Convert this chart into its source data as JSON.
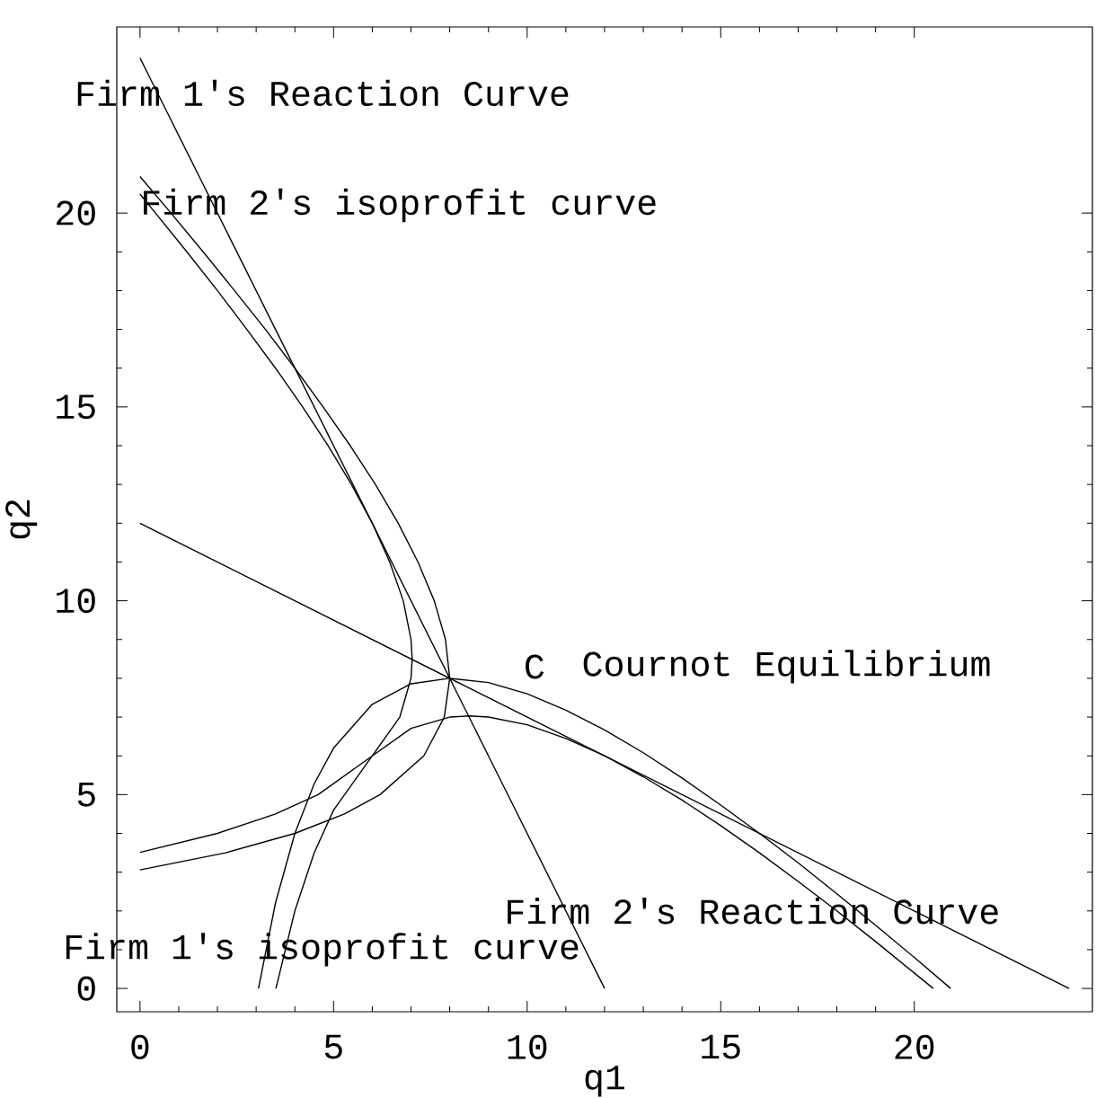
{
  "chart_data": {
    "type": "line",
    "xlabel": "q1",
    "ylabel": "q2",
    "xlim": [
      -0.6,
      24.6
    ],
    "ylim": [
      -0.6,
      24.8
    ],
    "xticks": [
      0,
      5,
      10,
      15,
      20
    ],
    "yticks": [
      0,
      5,
      10,
      15,
      20
    ],
    "series": [
      {
        "color": "#000000",
        "x": [
          0,
          12
        ],
        "values": [
          24,
          0
        ]
      },
      {
        "color": "#000000",
        "x": [
          0,
          24
        ],
        "values": [
          12,
          0
        ]
      },
      {
        "color": "#000000",
        "x": [
          0,
          0.8,
          1.63,
          2.44,
          3.24,
          4,
          4.73,
          5.43,
          6.08,
          6.67,
          7.18,
          7.6,
          7.89,
          8,
          7.86,
          7.33,
          6.2,
          5.28,
          4,
          2.21,
          0
        ],
        "values": [
          20.94,
          20,
          19,
          18,
          17,
          16,
          15,
          14,
          13,
          12,
          11,
          10,
          9,
          8,
          7,
          6,
          5,
          4.5,
          4,
          3.5,
          3.06
        ]
      },
      {
        "color": "#000000",
        "x": [
          0,
          0.4,
          1.21,
          2,
          2.76,
          3.5,
          4.2,
          4.86,
          5.46,
          6,
          6.45,
          6.8,
          7,
          7.03,
          7,
          6.71,
          6,
          4.6,
          3.5,
          2,
          0
        ],
        "values": [
          20.49,
          20,
          19,
          18,
          17,
          16,
          15,
          14,
          13,
          12,
          11,
          10,
          9,
          8.5,
          8,
          7,
          6,
          5,
          4.5,
          4,
          3.51
        ]
      },
      {
        "color": "#000000",
        "x": [
          20.94,
          20,
          19,
          18,
          17,
          16,
          15,
          14,
          13,
          12,
          11,
          10,
          9,
          8,
          7,
          6,
          5,
          4.5,
          4,
          3.5,
          3.06
        ],
        "values": [
          0,
          0.8,
          1.63,
          2.44,
          3.24,
          4,
          4.73,
          5.43,
          6.08,
          6.67,
          7.18,
          7.6,
          7.89,
          8,
          7.86,
          7.33,
          6.2,
          5.28,
          4,
          2.21,
          0
        ]
      },
      {
        "color": "#000000",
        "x": [
          20.49,
          20,
          19,
          18,
          17,
          16,
          15,
          14,
          13,
          12,
          11,
          10,
          9,
          8.5,
          8,
          7,
          6,
          5,
          4.5,
          4,
          3.51
        ],
        "values": [
          0,
          0.4,
          1.21,
          2,
          2.76,
          3.5,
          4.2,
          4.86,
          5.46,
          6,
          6.45,
          6.8,
          7,
          7.03,
          7,
          6.71,
          6,
          4.6,
          3.5,
          2,
          0
        ]
      }
    ],
    "annotations": [
      "Firm 1's Reaction Curve",
      "Firm 2's isoprofit curve",
      "C",
      "Cournot Equilibrium",
      "Firm 2's Reaction Curve",
      "Firm 1's isoprofit curve"
    ]
  }
}
